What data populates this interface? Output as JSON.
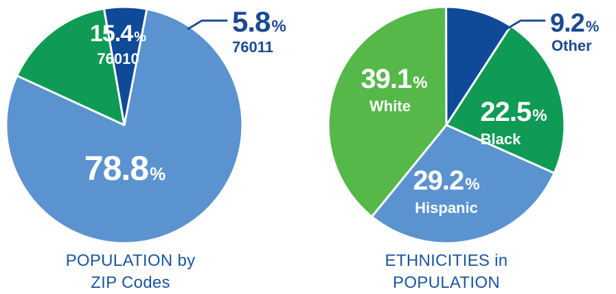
{
  "charts": {
    "population_by_zip": {
      "caption_line1": "POPULATION by",
      "caption_line2": "ZIP Codes"
    },
    "ethnicities": {
      "caption_line1": "ETHNICITIES in",
      "caption_line2": "POPULATION"
    }
  },
  "chart_data": [
    {
      "type": "pie",
      "title": "POPULATION by ZIP Codes",
      "start_angle_deg": 11,
      "slices": [
        {
          "value": 78.8,
          "value_text": "78.8",
          "label": "",
          "color": "#5b93d0",
          "label_color": "#ffffff",
          "label_placement": "inside"
        },
        {
          "value": 15.4,
          "value_text": "15.4",
          "label": "76010",
          "color": "#0f9b56",
          "label_color": "#ffffff",
          "label_placement": "inside"
        },
        {
          "value": 5.8,
          "value_text": "5.8",
          "label": "76011",
          "color": "#0e4a97",
          "label_color": "#1b4a93",
          "label_placement": "outside"
        }
      ],
      "percent_sign": "%"
    },
    {
      "type": "pie",
      "title": "ETHNICITIES in POPULATION",
      "start_angle_deg": 33,
      "slices": [
        {
          "value": 22.5,
          "value_text": "22.5",
          "label": "Black",
          "color": "#0f9b56",
          "label_color": "#ffffff",
          "label_placement": "inside"
        },
        {
          "value": 29.2,
          "value_text": "29.2",
          "label": "Hispanic",
          "color": "#5b93d0",
          "label_color": "#ffffff",
          "label_placement": "inside"
        },
        {
          "value": 39.1,
          "value_text": "39.1",
          "label": "White",
          "color": "#55b849",
          "label_color": "#ffffff",
          "label_placement": "inside"
        },
        {
          "value": 9.2,
          "value_text": "9.2",
          "label": "Other",
          "color": "#0e4a97",
          "label_color": "#1b4a93",
          "label_placement": "outside"
        }
      ],
      "percent_sign": "%"
    }
  ]
}
